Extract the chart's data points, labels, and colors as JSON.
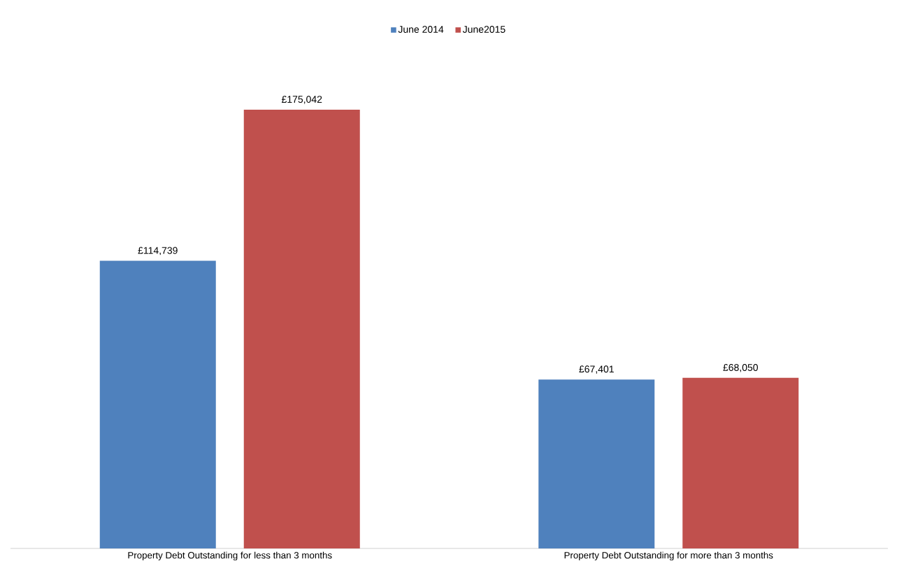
{
  "chart_data": {
    "type": "bar",
    "categories": [
      "Property Debt Outstanding for less than 3 months",
      "Property Debt Outstanding for more than 3 months"
    ],
    "series": [
      {
        "name": "June 2014",
        "color": "#4f81bd",
        "values": [
          114739,
          67401
        ],
        "value_labels": [
          "£114,739",
          "£67,401"
        ]
      },
      {
        "name": "June2015",
        "color": "#c0504d",
        "values": [
          175042,
          68050
        ],
        "value_labels": [
          "£175,042",
          "£68,050"
        ]
      }
    ],
    "legend": "top"
  }
}
